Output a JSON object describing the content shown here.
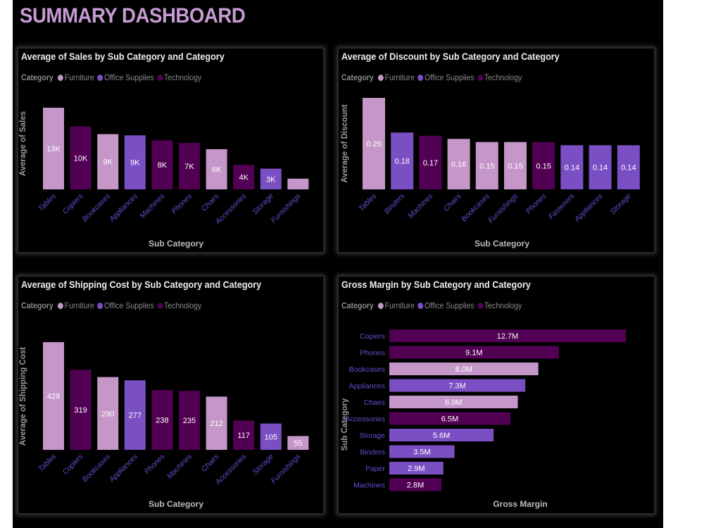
{
  "dashboard_title": "SUMMARY DASHBOARD",
  "colors": {
    "Furniture": "#c596c8",
    "Office Supplies": "#7b4fc4",
    "Technology": "#520054",
    "background": "#000000",
    "title": "#c79bd3"
  },
  "legend": {
    "title": "Category",
    "items": [
      "Furniture",
      "Office Supplies",
      "Technology"
    ]
  },
  "chart_data": [
    {
      "type": "bar",
      "orientation": "vertical",
      "title": "Average of Sales by Sub Category and Category",
      "xlabel": "Sub Category",
      "ylabel": "Average of Sales",
      "categories": [
        "Tables",
        "Copiers",
        "Bookcases",
        "Appliances",
        "Machines",
        "Phones",
        "Chairs",
        "Accessories",
        "Storage",
        "Furnishings"
      ],
      "category_group": [
        "Furniture",
        "Technology",
        "Furniture",
        "Office Supplies",
        "Technology",
        "Technology",
        "Furniture",
        "Technology",
        "Office Supplies",
        "Furniture"
      ],
      "values": [
        13000,
        10000,
        8800,
        8600,
        7800,
        7400,
        6400,
        3900,
        3300,
        1700
      ],
      "labels": [
        "13K",
        "10K",
        "9K",
        "9K",
        "8K",
        "7K",
        "6K",
        "4K",
        "3K",
        ""
      ]
    },
    {
      "type": "bar",
      "orientation": "vertical",
      "title": "Average of Discount by Sub Category and Category",
      "xlabel": "Sub Category",
      "ylabel": "Average of Discount",
      "categories": [
        "Tables",
        "Binders",
        "Machines",
        "Chairs",
        "Bookcases",
        "Furnishings",
        "Phones",
        "Fasteners",
        "Appliances",
        "Storage"
      ],
      "category_group": [
        "Furniture",
        "Office Supplies",
        "Technology",
        "Furniture",
        "Furniture",
        "Furniture",
        "Technology",
        "Office Supplies",
        "Office Supplies",
        "Office Supplies"
      ],
      "values": [
        0.29,
        0.18,
        0.17,
        0.16,
        0.15,
        0.15,
        0.15,
        0.14,
        0.14,
        0.14
      ],
      "labels": [
        "0.29",
        "0.18",
        "0.17",
        "0.16",
        "0.15",
        "0.15",
        "0.15",
        "0.14",
        "0.14",
        "0.14"
      ]
    },
    {
      "type": "bar",
      "orientation": "vertical",
      "title": "Average of Shipping Cost by Sub Category and Category",
      "xlabel": "Sub Category",
      "ylabel": "Average of Shipping Cost",
      "categories": [
        "Tables",
        "Copiers",
        "Bookcases",
        "Appliances",
        "Phones",
        "Machines",
        "Chairs",
        "Accessories",
        "Storage",
        "Furnishings"
      ],
      "category_group": [
        "Furniture",
        "Technology",
        "Furniture",
        "Office Supplies",
        "Technology",
        "Technology",
        "Furniture",
        "Technology",
        "Office Supplies",
        "Furniture"
      ],
      "values": [
        429,
        319,
        290,
        277,
        238,
        235,
        212,
        117,
        105,
        55
      ],
      "labels": [
        "429",
        "319",
        "290",
        "277",
        "238",
        "235",
        "212",
        "117",
        "105",
        "55"
      ]
    },
    {
      "type": "bar",
      "orientation": "horizontal",
      "title": "Gross Margin by Sub Category and Category",
      "xlabel": "Gross Margin",
      "ylabel": "Sub Category",
      "categories": [
        "Copiers",
        "Phones",
        "Bookcases",
        "Appliances",
        "Chairs",
        "Accessories",
        "Storage",
        "Binders",
        "Paper",
        "Machines"
      ],
      "category_group": [
        "Technology",
        "Technology",
        "Furniture",
        "Office Supplies",
        "Furniture",
        "Technology",
        "Office Supplies",
        "Office Supplies",
        "Office Supplies",
        "Technology"
      ],
      "values": [
        12.7,
        9.1,
        8.0,
        7.3,
        6.9,
        6.5,
        5.6,
        3.5,
        2.9,
        2.8
      ],
      "labels": [
        "12.7M",
        "9.1M",
        "8.0M",
        "7.3M",
        "6.9M",
        "6.5M",
        "5.6M",
        "3.5M",
        "2.9M",
        "2.8M"
      ]
    }
  ]
}
